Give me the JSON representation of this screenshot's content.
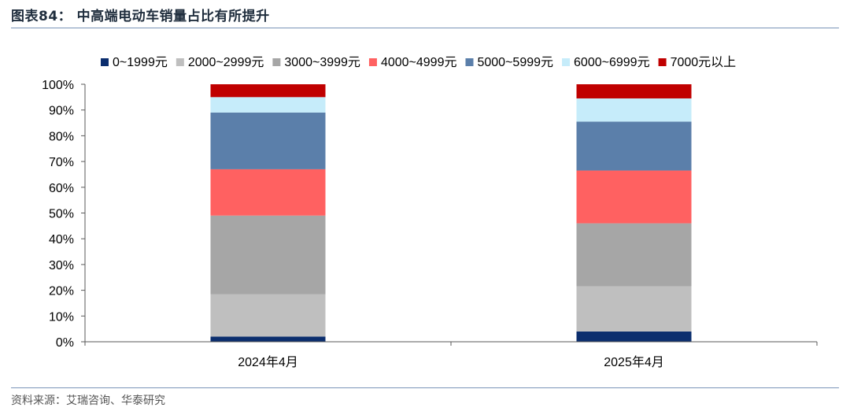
{
  "header": {
    "title": "图表84：  中高端电动车销量占比有所提升"
  },
  "footer": {
    "source": "资料来源：艾瑞咨询、华泰研究"
  },
  "chart_data": {
    "type": "bar",
    "stacked": true,
    "percent_stacked": true,
    "categories": [
      "2024年4月",
      "2025年4月"
    ],
    "yticks": [
      "0%",
      "10%",
      "20%",
      "30%",
      "40%",
      "50%",
      "60%",
      "70%",
      "80%",
      "90%",
      "100%"
    ],
    "ylim": [
      0,
      100
    ],
    "legend_position": "top",
    "grid": false,
    "series": [
      {
        "name": "0~1999元",
        "color": "#0b2e6e",
        "values": [
          2.0,
          4.0
        ]
      },
      {
        "name": "2000~2999元",
        "color": "#bfbfbf",
        "values": [
          16.5,
          17.5
        ]
      },
      {
        "name": "3000~3999元",
        "color": "#a6a6a6",
        "values": [
          30.5,
          24.5
        ]
      },
      {
        "name": "4000~4999元",
        "color": "#ff6161",
        "values": [
          18.0,
          20.5
        ]
      },
      {
        "name": "5000~5999元",
        "color": "#5b7faa",
        "values": [
          22.0,
          19.0
        ]
      },
      {
        "name": "6000~6999元",
        "color": "#c6ecfa",
        "values": [
          6.0,
          9.0
        ]
      },
      {
        "name": "7000元以上",
        "color": "#c00000",
        "values": [
          5.0,
          5.5
        ]
      }
    ]
  }
}
